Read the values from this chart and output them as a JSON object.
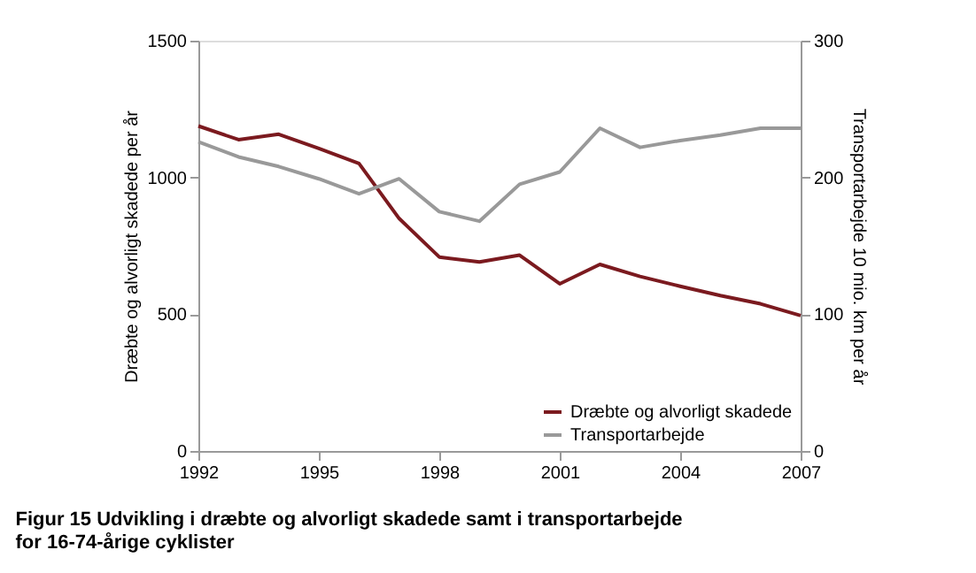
{
  "chart_data": {
    "type": "line",
    "title": "Figur 15    Udvikling i dræbte og alvorligt skadede samt i transportarbejde for 16-74-årige cyklister",
    "x": [
      1992,
      1993,
      1994,
      1995,
      1996,
      1997,
      1998,
      1999,
      2000,
      2001,
      2002,
      2003,
      2004,
      2005,
      2006,
      2007
    ],
    "xlim": [
      1992,
      2007
    ],
    "xticks": [
      1992,
      1995,
      1998,
      2001,
      2004,
      2007
    ],
    "ylabel": "Dræbte og alvorligt skadede per år",
    "y2label": "Transportarbejde 10 mio. km per år",
    "ylim": [
      0,
      1500
    ],
    "yticks": [
      0,
      500,
      1000,
      1500
    ],
    "y2lim": [
      0,
      300
    ],
    "y2ticks": [
      0,
      100,
      200,
      300
    ],
    "grid": false,
    "legend": "bottom right",
    "marker": "none",
    "line_style": "solid",
    "series": [
      {
        "name": "Dræbte og alvorligt skadede",
        "color": "#7b1a1f",
        "values": [
          1188,
          1138,
          1158,
          1106,
          1051,
          850,
          709,
          691,
          716,
          611,
          682,
          638,
          602,
          568,
          538,
          495
        ]
      },
      {
        "name": "Transportarbejde",
        "color": "#999999",
        "axis": "y2",
        "values": [
          226,
          215,
          208,
          199,
          188,
          199,
          175,
          168,
          195,
          204,
          236,
          222,
          227,
          231,
          236,
          236
        ]
      }
    ]
  }
}
